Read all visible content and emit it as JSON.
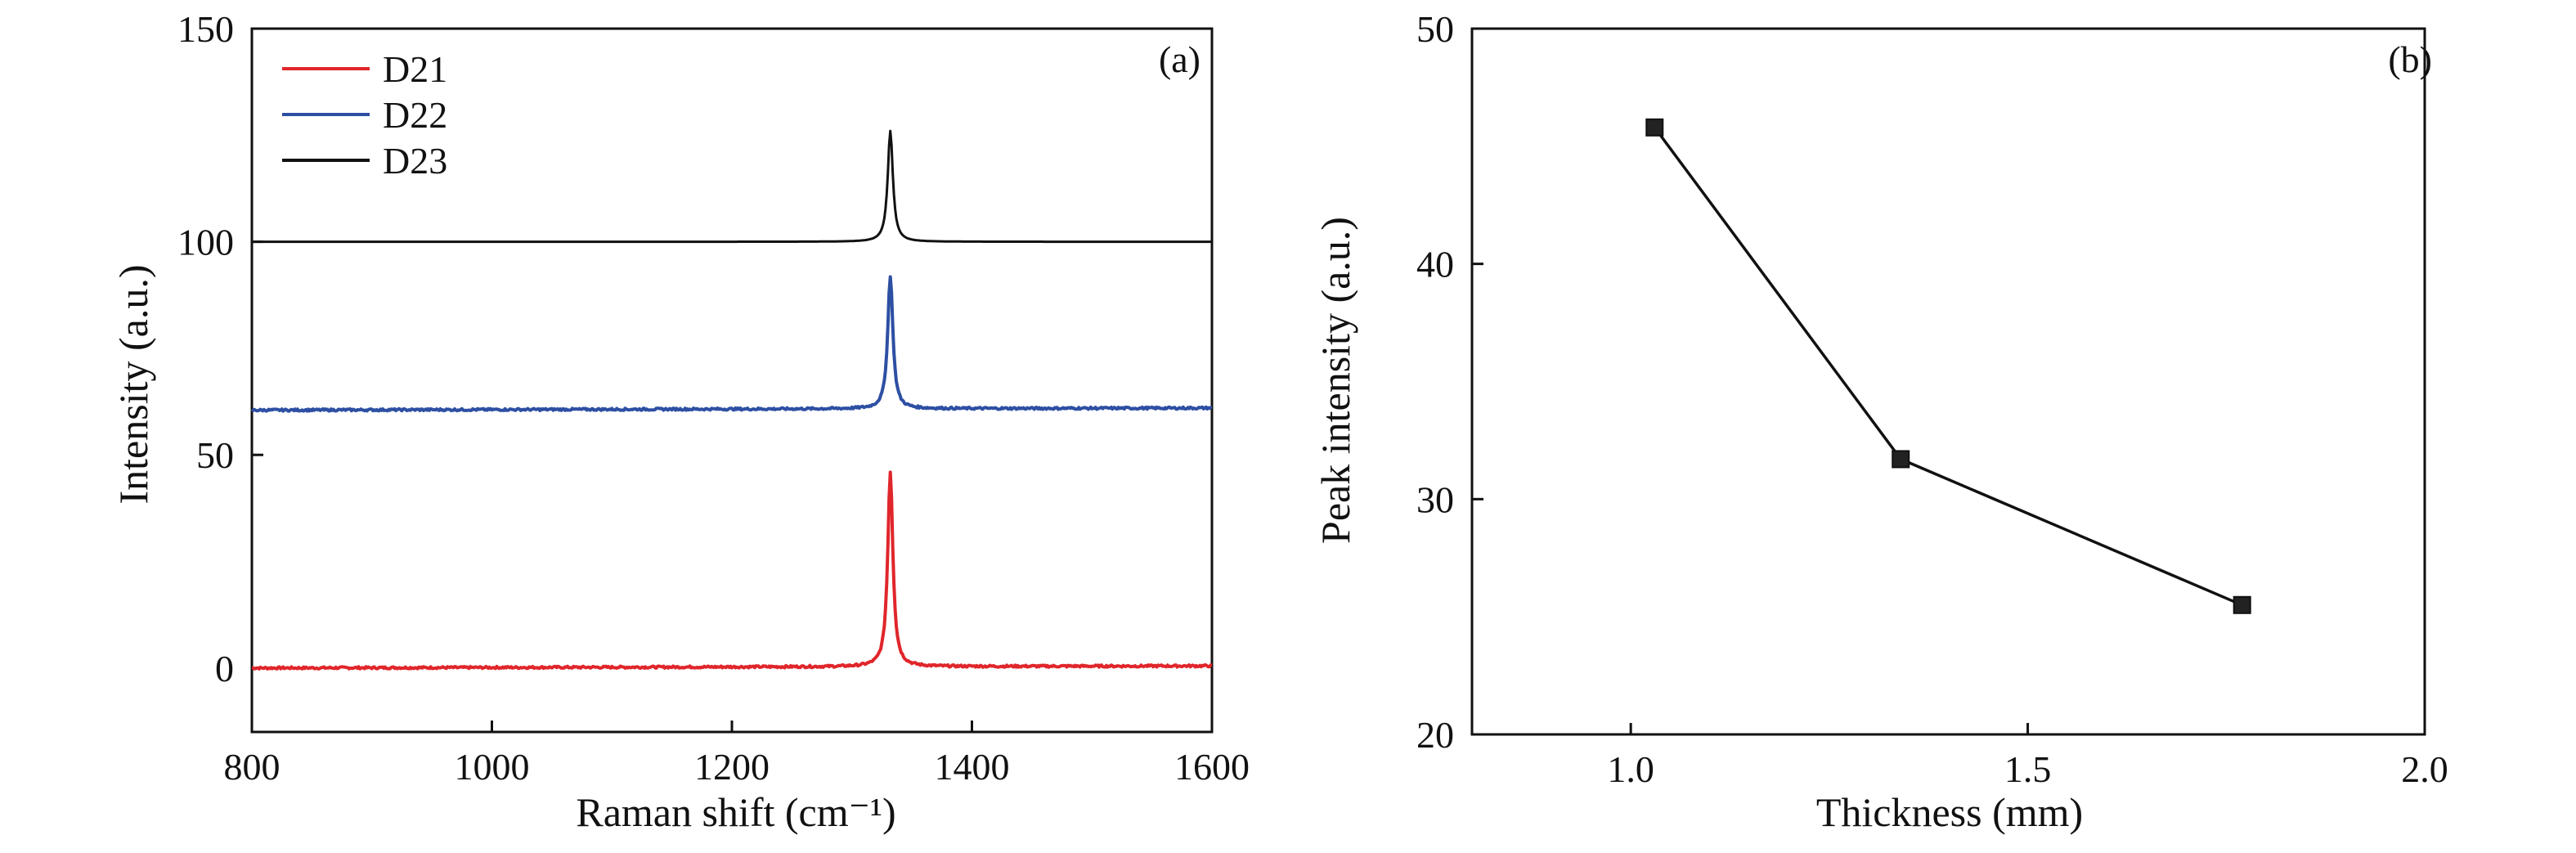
{
  "chart_data": [
    {
      "panel": "(a)",
      "type": "line",
      "xlabel": "Raman shift (cm⁻¹)",
      "ylabel": "Intensity (a.u.)",
      "xlim": [
        800,
        1600
      ],
      "ylim": [
        -15,
        150
      ],
      "xticks": [
        "800",
        "1000",
        "1200",
        "1400",
        "1600"
      ],
      "yticks": [
        "0",
        "50",
        "100",
        "150"
      ],
      "legend": "top-left",
      "peak_position": 1332,
      "series": [
        {
          "name": "D21",
          "color": "#e0262b",
          "baseline_start": 0,
          "baseline_end": 0.5,
          "peak_top": 46
        },
        {
          "name": "D22",
          "color": "#2d4fa3",
          "baseline_start": 60.5,
          "baseline_end": 61,
          "peak_top": 92
        },
        {
          "name": "D23",
          "color": "#111111",
          "baseline_start": 100,
          "baseline_end": 100,
          "peak_top": 126
        }
      ]
    },
    {
      "panel": "(b)",
      "type": "line",
      "markers": "square",
      "xlabel": "Thickness (mm)",
      "ylabel": "Peak intensity (a.u.)",
      "xlim": [
        0.8,
        2.0
      ],
      "ylim": [
        20,
        50
      ],
      "xticks": [
        "1.0",
        "1.5",
        "2.0"
      ],
      "yticks": [
        "20",
        "30",
        "40",
        "50"
      ],
      "series": [
        {
          "x": [
            1.03,
            1.34,
            1.77
          ],
          "y": [
            45.8,
            31.7,
            25.5
          ],
          "color": "#111111"
        }
      ]
    }
  ]
}
